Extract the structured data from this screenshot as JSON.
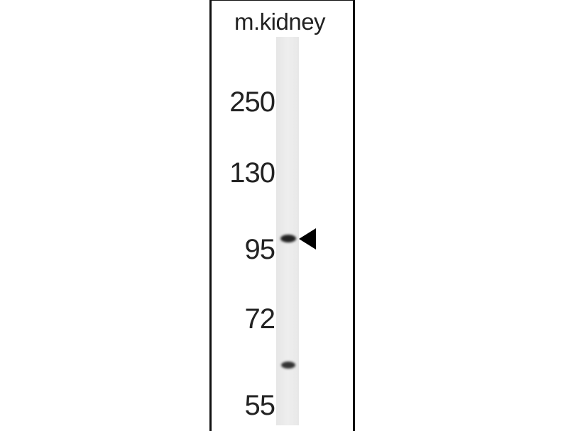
{
  "lane_label": "m.kidney",
  "molecular_weight_markers": [
    "250",
    "130",
    "95",
    "72",
    "55"
  ],
  "bands": [
    {
      "approx_mw": "~100",
      "intensity": "strong",
      "marked_with_arrow": true
    },
    {
      "approx_mw": "~62",
      "intensity": "moderate",
      "marked_with_arrow": false
    }
  ]
}
